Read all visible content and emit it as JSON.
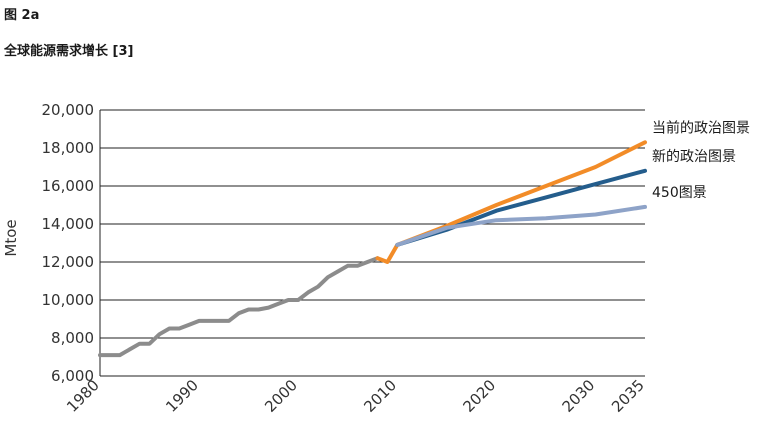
{
  "figure": {
    "label": "图 2a",
    "title": "全球能源需求增长 [3]"
  },
  "chart_data": {
    "type": "line",
    "title": "全球能源需求增长 [3]",
    "ylabel": "Mtoe",
    "xlabel": "",
    "ylim": [
      6000,
      20000
    ],
    "xlim": [
      1980,
      2035
    ],
    "yticks": [
      6000,
      8000,
      10000,
      12000,
      14000,
      16000,
      18000,
      20000
    ],
    "ytick_labels": [
      "6,000",
      "8,000",
      "10,000",
      "12,000",
      "14,000",
      "16,000",
      "18,000",
      "20,000"
    ],
    "xticks": [
      1980,
      1990,
      2000,
      2010,
      2020,
      2030,
      2035
    ],
    "xtick_labels": [
      "1980",
      "1990",
      "2000",
      "2010",
      "2020",
      "2030",
      "2035"
    ],
    "grid": "horizontal",
    "series": [
      {
        "name": "",
        "color": "#8c8c8c",
        "x": [
          1980,
          1981,
          1982,
          1983,
          1984,
          1985,
          1986,
          1987,
          1988,
          1989,
          1990,
          1991,
          1992,
          1993,
          1994,
          1995,
          1996,
          1997,
          1998,
          1999,
          2000,
          2001,
          2002,
          2003,
          2004,
          2005,
          2006,
          2007,
          2008
        ],
        "y": [
          7100,
          7100,
          7100,
          7400,
          7700,
          7700,
          8200,
          8500,
          8500,
          8700,
          8900,
          8900,
          8900,
          8900,
          9300,
          9500,
          9500,
          9600,
          9800,
          10000,
          10000,
          10400,
          10700,
          11200,
          11500,
          11800,
          11800,
          12000,
          12200
        ]
      },
      {
        "name": "当前的政治图景",
        "color": "#f28c28",
        "x": [
          2008,
          2009,
          2010,
          2015,
          2020,
          2025,
          2030,
          2035
        ],
        "y": [
          12200,
          12000,
          12900,
          13900,
          15000,
          16000,
          17000,
          18300
        ]
      },
      {
        "name": "新的政治图景",
        "color": "#245d8c",
        "x": [
          2010,
          2015,
          2020,
          2025,
          2030,
          2035
        ],
        "y": [
          12900,
          13700,
          14700,
          15400,
          16100,
          16800
        ]
      },
      {
        "name": "450图景",
        "color": "#8ea3c8",
        "x": [
          2010,
          2015,
          2020,
          2025,
          2030,
          2035
        ],
        "y": [
          12900,
          13800,
          14200,
          14300,
          14500,
          14900
        ]
      }
    ]
  }
}
